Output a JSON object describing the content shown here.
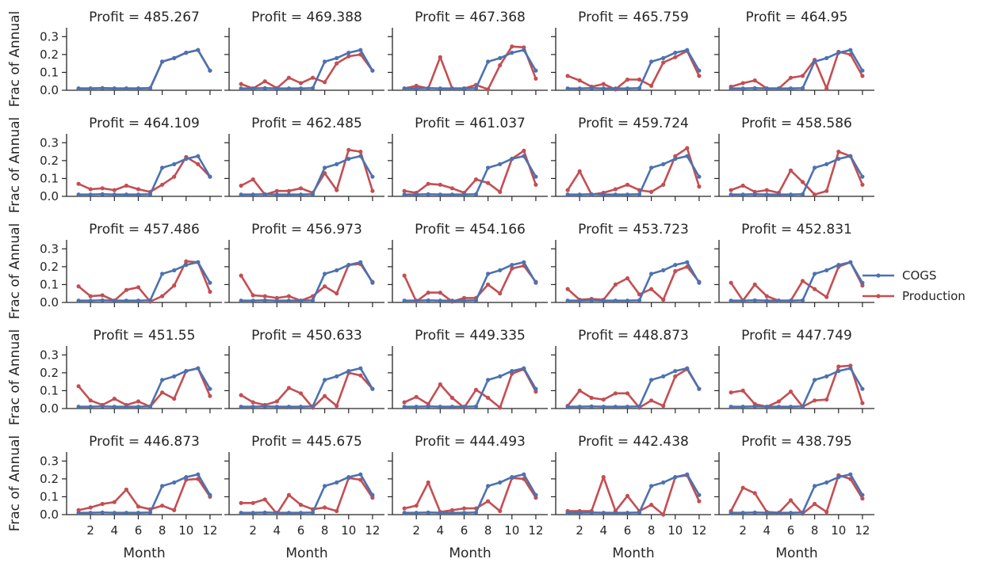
{
  "chart_data": {
    "type": "line",
    "grid_rows": 5,
    "grid_cols": 5,
    "xlabel": "Month",
    "ylabel": "Frac of Annual",
    "xlim": [
      0,
      13
    ],
    "ylim": [
      0,
      0.35
    ],
    "xticks": [
      2,
      4,
      6,
      8,
      10,
      12
    ],
    "yticks": [
      0.0,
      0.1,
      0.2,
      0.3
    ],
    "x": [
      1,
      2,
      3,
      4,
      5,
      6,
      7,
      8,
      9,
      10,
      11,
      12
    ],
    "legend": {
      "position": "right",
      "entries": [
        {
          "name": "COGS",
          "color": "#4c72b0"
        },
        {
          "name": "Production",
          "color": "#c44e52"
        }
      ]
    },
    "cogs": [
      0.01,
      0.01,
      0.012,
      0.01,
      0.01,
      0.01,
      0.012,
      0.16,
      0.18,
      0.21,
      0.225,
      0.11
    ],
    "panels": [
      {
        "title": "Profit = 485.267",
        "production": [
          0.01,
          0.01,
          0.012,
          0.01,
          0.01,
          0.01,
          0.012,
          0.16,
          0.18,
          0.21,
          0.225,
          0.11
        ]
      },
      {
        "title": "Profit = 469.388",
        "production": [
          0.035,
          0.01,
          0.05,
          0.012,
          0.07,
          0.04,
          0.07,
          0.045,
          0.15,
          0.19,
          0.2,
          0.11
        ]
      },
      {
        "title": "Profit = 467.368",
        "production": [
          0.01,
          0.025,
          0.01,
          0.185,
          0.01,
          0.01,
          0.03,
          0.005,
          0.14,
          0.245,
          0.24,
          0.065
        ]
      },
      {
        "title": "Profit = 465.759",
        "production": [
          0.08,
          0.055,
          0.02,
          0.035,
          0.005,
          0.06,
          0.06,
          0.025,
          0.155,
          0.185,
          0.22,
          0.08
        ]
      },
      {
        "title": "Profit = 464.95",
        "production": [
          0.02,
          0.04,
          0.055,
          0.01,
          0.01,
          0.07,
          0.08,
          0.17,
          0.01,
          0.215,
          0.2,
          0.08
        ]
      },
      {
        "title": "Profit = 464.109",
        "production": [
          0.07,
          0.04,
          0.045,
          0.035,
          0.06,
          0.04,
          0.025,
          0.065,
          0.11,
          0.22,
          0.18,
          0.11
        ]
      },
      {
        "title": "Profit = 462.485",
        "production": [
          0.06,
          0.095,
          0.01,
          0.03,
          0.03,
          0.045,
          0.02,
          0.13,
          0.035,
          0.26,
          0.25,
          0.03
        ]
      },
      {
        "title": "Profit = 461.037",
        "production": [
          0.03,
          0.02,
          0.07,
          0.065,
          0.045,
          0.02,
          0.095,
          0.075,
          0.025,
          0.21,
          0.255,
          0.065
        ]
      },
      {
        "title": "Profit = 459.724",
        "production": [
          0.035,
          0.14,
          0.01,
          0.02,
          0.04,
          0.065,
          0.035,
          0.025,
          0.065,
          0.225,
          0.27,
          0.055
        ]
      },
      {
        "title": "Profit = 458.586",
        "production": [
          0.035,
          0.06,
          0.025,
          0.035,
          0.02,
          0.145,
          0.08,
          0.01,
          0.03,
          0.25,
          0.225,
          0.065
        ]
      },
      {
        "title": "Profit = 457.486",
        "production": [
          0.09,
          0.035,
          0.04,
          0.01,
          0.07,
          0.085,
          0.005,
          0.035,
          0.095,
          0.23,
          0.225,
          0.06
        ]
      },
      {
        "title": "Profit = 456.973",
        "production": [
          0.15,
          0.04,
          0.035,
          0.025,
          0.035,
          0.01,
          0.035,
          0.09,
          0.05,
          0.21,
          0.215,
          0.115
        ]
      },
      {
        "title": "Profit = 454.166",
        "production": [
          0.15,
          0.005,
          0.055,
          0.055,
          0.005,
          0.025,
          0.025,
          0.1,
          0.05,
          0.19,
          0.205,
          0.115
        ]
      },
      {
        "title": "Profit = 453.723",
        "production": [
          0.075,
          0.015,
          0.02,
          0.015,
          0.1,
          0.135,
          0.045,
          0.075,
          0.015,
          0.175,
          0.2,
          0.115
        ]
      },
      {
        "title": "Profit = 452.831",
        "production": [
          0.11,
          0.01,
          0.1,
          0.035,
          0.01,
          0.01,
          0.12,
          0.075,
          0.03,
          0.2,
          0.225,
          0.095
        ]
      },
      {
        "title": "Profit = 451.55",
        "production": [
          0.125,
          0.045,
          0.02,
          0.055,
          0.02,
          0.04,
          0.01,
          0.09,
          0.055,
          0.21,
          0.225,
          0.07
        ]
      },
      {
        "title": "Profit = 450.633",
        "production": [
          0.075,
          0.035,
          0.02,
          0.04,
          0.115,
          0.085,
          0.005,
          0.07,
          0.015,
          0.2,
          0.185,
          0.11
        ]
      },
      {
        "title": "Profit = 449.335",
        "production": [
          0.035,
          0.065,
          0.025,
          0.135,
          0.06,
          0.005,
          0.105,
          0.06,
          0.005,
          0.195,
          0.22,
          0.095
        ]
      },
      {
        "title": "Profit = 448.873",
        "production": [
          0.015,
          0.1,
          0.06,
          0.05,
          0.085,
          0.085,
          0.005,
          0.045,
          0.015,
          0.18,
          0.22,
          0.11
        ]
      },
      {
        "title": "Profit = 447.749",
        "production": [
          0.09,
          0.1,
          0.025,
          0.01,
          0.04,
          0.095,
          0.01,
          0.045,
          0.05,
          0.235,
          0.24,
          0.03
        ]
      },
      {
        "title": "Profit = 446.873",
        "production": [
          0.025,
          0.04,
          0.06,
          0.07,
          0.14,
          0.045,
          0.03,
          0.05,
          0.025,
          0.195,
          0.2,
          0.1
        ]
      },
      {
        "title": "Profit = 445.675",
        "production": [
          0.065,
          0.065,
          0.085,
          0.005,
          0.11,
          0.055,
          0.03,
          0.04,
          0.02,
          0.205,
          0.195,
          0.095
        ]
      },
      {
        "title": "Profit = 444.493",
        "production": [
          0.035,
          0.05,
          0.18,
          0.015,
          0.025,
          0.035,
          0.035,
          0.075,
          0.02,
          0.205,
          0.2,
          0.095
        ]
      },
      {
        "title": "Profit = 442.438",
        "production": [
          0.02,
          0.02,
          0.02,
          0.21,
          0.02,
          0.105,
          0.02,
          0.055,
          0.0,
          0.21,
          0.22,
          0.075
        ]
      },
      {
        "title": "Profit = 438.795",
        "production": [
          0.02,
          0.15,
          0.12,
          0.015,
          0.01,
          0.08,
          0.005,
          0.06,
          0.015,
          0.22,
          0.2,
          0.09
        ]
      }
    ]
  }
}
